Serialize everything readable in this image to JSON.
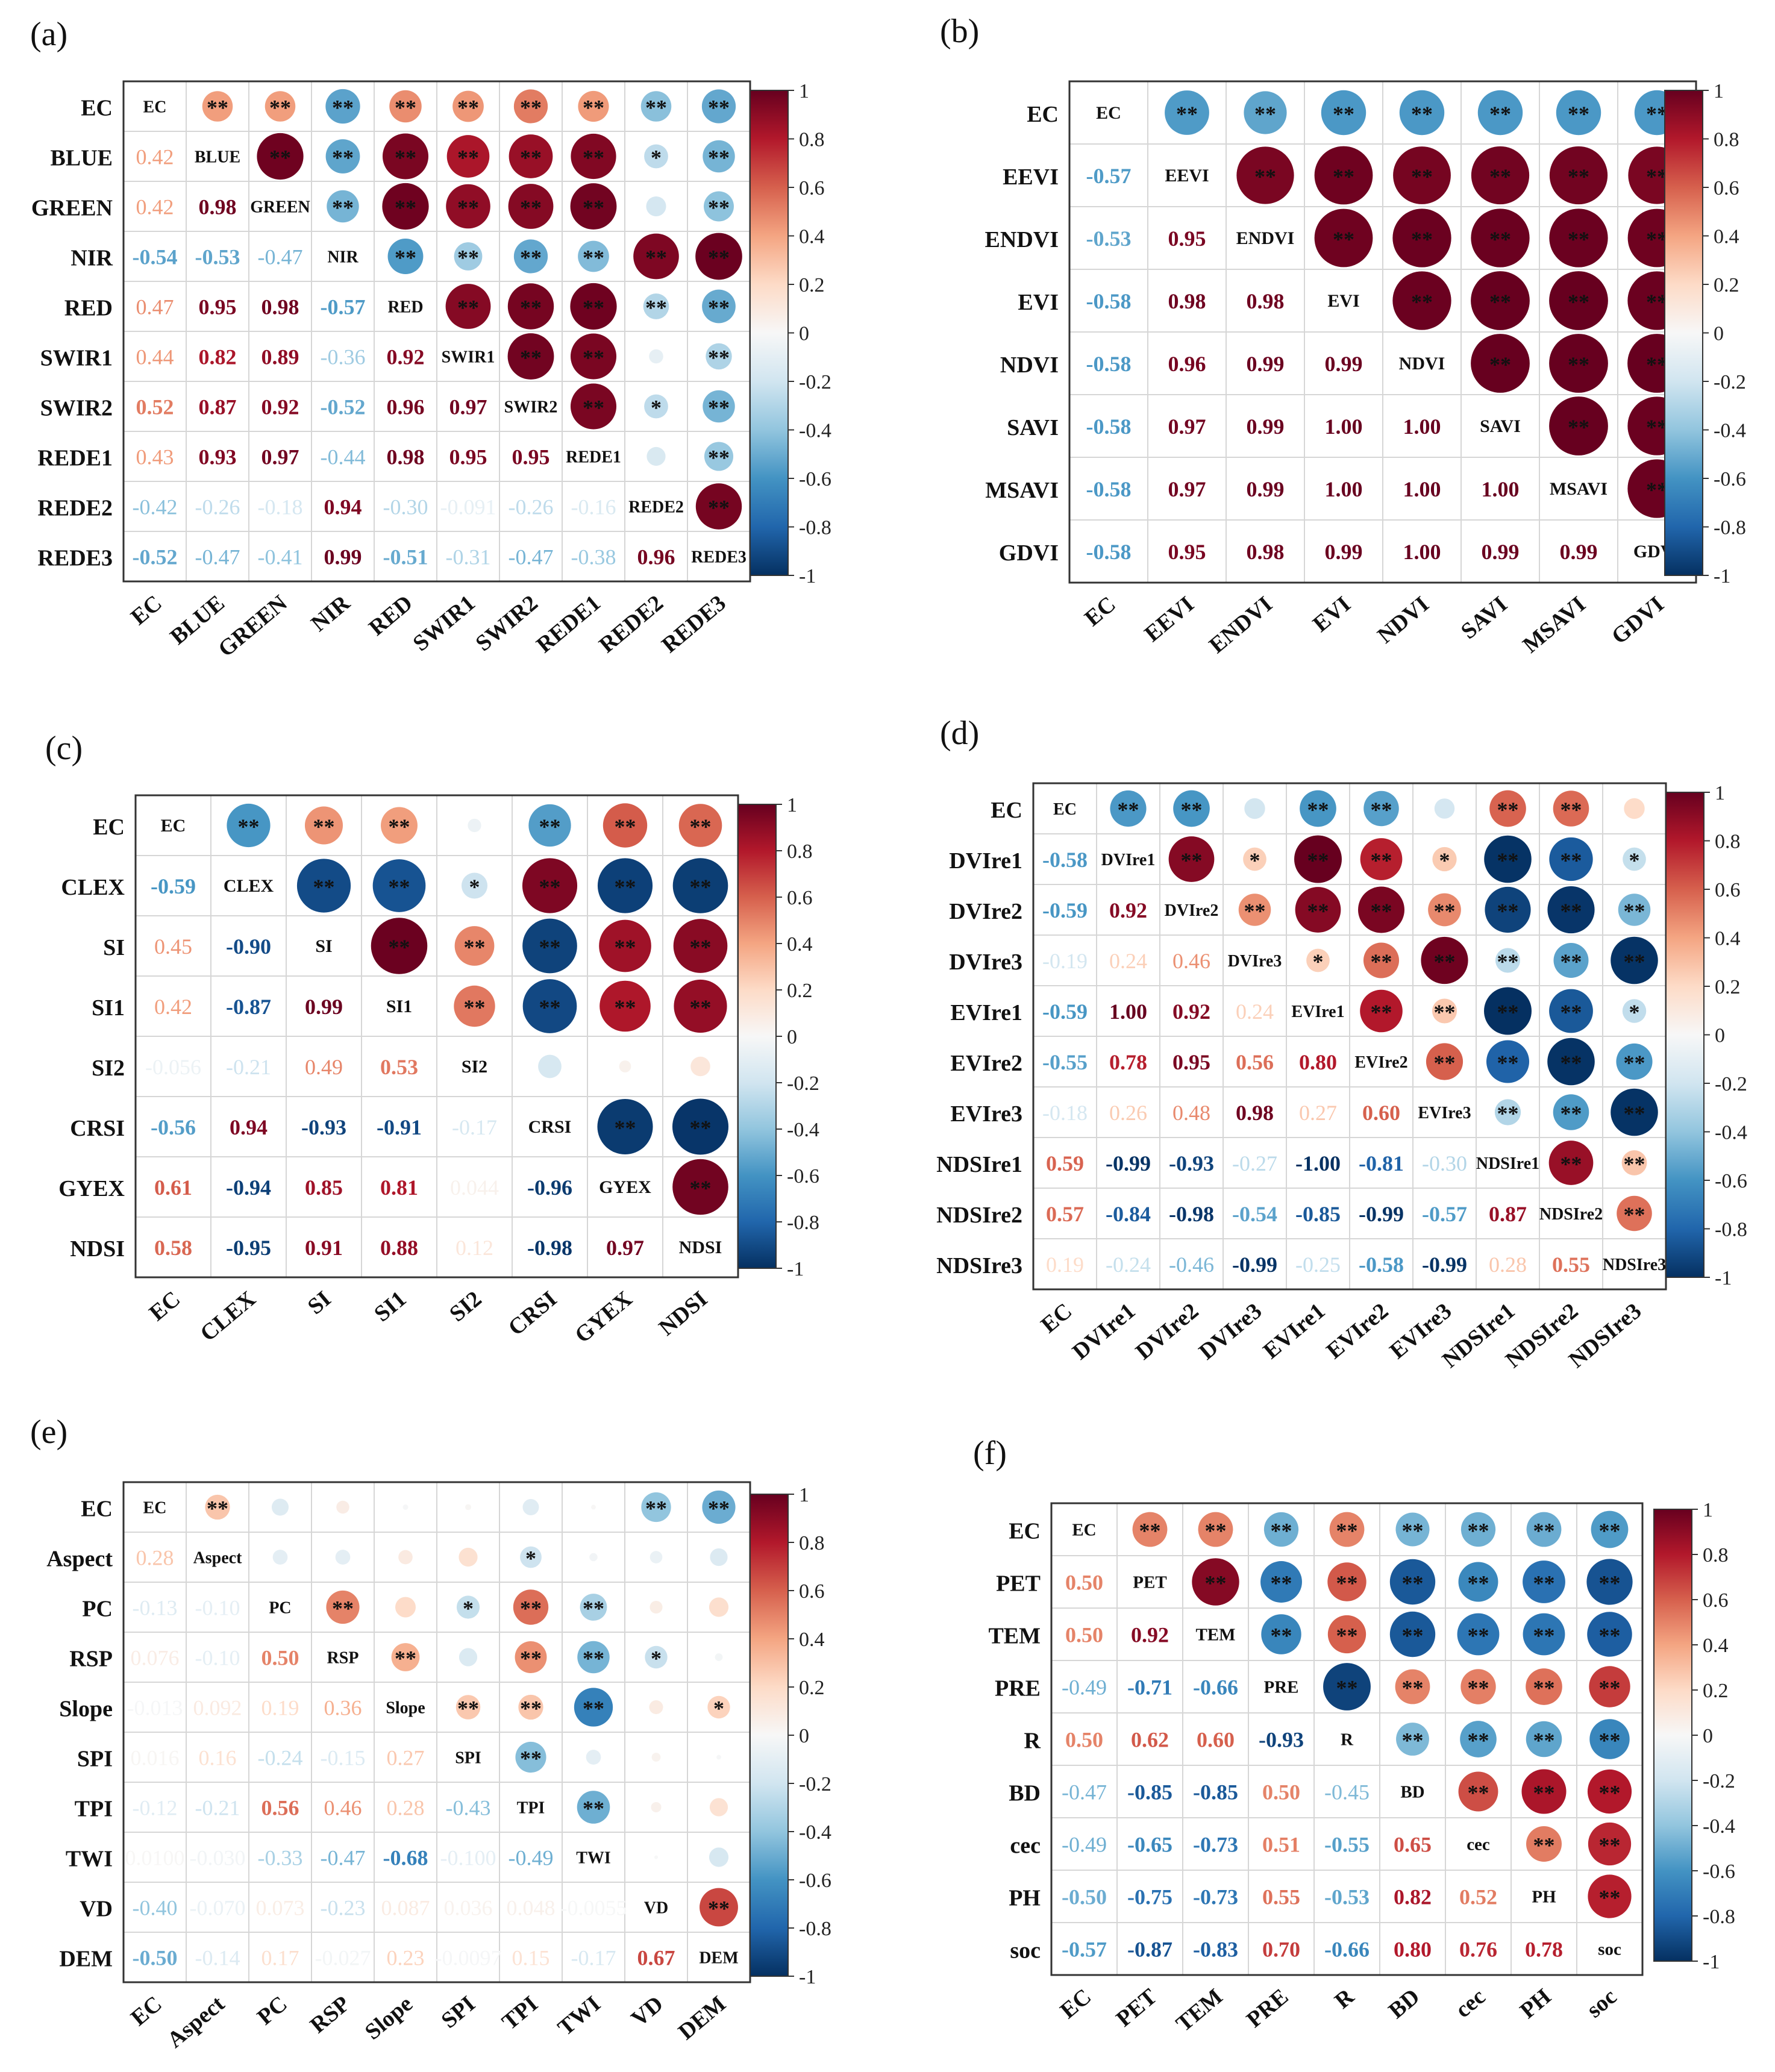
{
  "chart_data": [
    {
      "label": "(a)",
      "type": "heatmap",
      "variables": [
        "EC",
        "BLUE",
        "GREEN",
        "NIR",
        "RED",
        "SWIR1",
        "SWIR2",
        "REDE1",
        "REDE2",
        "REDE3"
      ],
      "lower": [
        [
          "0.42"
        ],
        [
          "0.42",
          "0.98"
        ],
        [
          "-0.54",
          "-0.53",
          "-0.47"
        ],
        [
          "0.47",
          "0.95",
          "0.98",
          "-0.57"
        ],
        [
          "0.44",
          "0.82",
          "0.89",
          "-0.36",
          "0.92"
        ],
        [
          "0.52",
          "0.87",
          "0.92",
          "-0.52",
          "0.96",
          "0.97"
        ],
        [
          "0.43",
          "0.93",
          "0.97",
          "-0.44",
          "0.98",
          "0.95",
          "0.95"
        ],
        [
          "-0.42",
          "-0.26",
          "-0.18",
          "0.94",
          "-0.30",
          "-0.091",
          "-0.26",
          "-0.16"
        ],
        [
          "-0.52",
          "-0.47",
          "-0.41",
          "0.99",
          "-0.51",
          "-0.31",
          "-0.47",
          "-0.38",
          "0.96"
        ]
      ],
      "upper_sig": [
        [
          "**",
          "**",
          "**",
          "**",
          "**",
          "**",
          "**",
          "**",
          "**"
        ],
        [
          "**",
          "**",
          "**",
          "**",
          "**",
          "**",
          "*",
          "**"
        ],
        [
          "**",
          "**",
          "**",
          "**",
          "**",
          "",
          "**"
        ],
        [
          "**",
          "**",
          "**",
          "**",
          "**",
          "**"
        ],
        [
          "**",
          "**",
          "**",
          "**",
          "**"
        ],
        [
          "**",
          "**",
          "",
          "**"
        ],
        [
          "**",
          "*",
          "**"
        ],
        [
          "",
          "**"
        ],
        [
          "**"
        ]
      ],
      "colorbar_ticks": [
        "1",
        "0.8",
        "0.6",
        "0.4",
        "0.2",
        "0",
        "-0.2",
        "-0.4",
        "-0.6",
        "-0.8",
        "-1"
      ]
    },
    {
      "label": "(b)",
      "type": "heatmap",
      "variables": [
        "EC",
        "EEVI",
        "ENDVI",
        "EVI",
        "NDVI",
        "SAVI",
        "MSAVI",
        "GDVI"
      ],
      "lower": [
        [
          "-0.57"
        ],
        [
          "-0.53",
          "0.95"
        ],
        [
          "-0.58",
          "0.98",
          "0.98"
        ],
        [
          "-0.58",
          "0.96",
          "0.99",
          "0.99"
        ],
        [
          "-0.58",
          "0.97",
          "0.99",
          "1.00",
          "1.00"
        ],
        [
          "-0.58",
          "0.97",
          "0.99",
          "1.00",
          "1.00",
          "1.00"
        ],
        [
          "-0.58",
          "0.95",
          "0.98",
          "0.99",
          "1.00",
          "0.99",
          "0.99"
        ]
      ],
      "upper_sig": [
        [
          "**",
          "**",
          "**",
          "**",
          "**",
          "**",
          "**"
        ],
        [
          "**",
          "**",
          "**",
          "**",
          "**",
          "**"
        ],
        [
          "**",
          "**",
          "**",
          "**",
          "**"
        ],
        [
          "**",
          "**",
          "**",
          "**"
        ],
        [
          "**",
          "**",
          "**"
        ],
        [
          "**",
          "**"
        ],
        [
          "**"
        ]
      ],
      "colorbar_ticks": [
        "1",
        "0.8",
        "0.6",
        "0.4",
        "0.2",
        "0",
        "-0.2",
        "-0.4",
        "-0.6",
        "-0.8",
        "-1"
      ]
    },
    {
      "label": "(c)",
      "type": "heatmap",
      "variables": [
        "EC",
        "CLEX",
        "SI",
        "SI1",
        "SI2",
        "CRSI",
        "GYEX",
        "NDSI"
      ],
      "lower": [
        [
          "-0.59"
        ],
        [
          "0.45",
          "-0.90"
        ],
        [
          "0.42",
          "-0.87",
          "0.99"
        ],
        [
          "-0.056",
          "-0.21",
          "0.49",
          "0.53"
        ],
        [
          "-0.56",
          "0.94",
          "-0.93",
          "-0.91",
          "-0.17"
        ],
        [
          "0.61",
          "-0.94",
          "0.85",
          "0.81",
          "0.044",
          "-0.96"
        ],
        [
          "0.58",
          "-0.95",
          "0.91",
          "0.88",
          "0.12",
          "-0.98",
          "0.97"
        ]
      ],
      "upper_sig": [
        [
          "**",
          "**",
          "**",
          "",
          "**",
          "**",
          "**"
        ],
        [
          "**",
          "**",
          "*",
          "**",
          "**",
          "**"
        ],
        [
          "**",
          "**",
          "**",
          "**",
          "**"
        ],
        [
          "**",
          "**",
          "**",
          "**"
        ],
        [
          "",
          "",
          ""
        ],
        [
          "**",
          "**"
        ],
        [
          "**"
        ]
      ],
      "colorbar_ticks": [
        "1",
        "0.8",
        "0.6",
        "0.4",
        "0.2",
        "0",
        "-0.2",
        "-0.4",
        "-0.6",
        "-0.8",
        "-1"
      ]
    },
    {
      "label": "(d)",
      "type": "heatmap",
      "variables": [
        "EC",
        "DVIre1",
        "DVIre2",
        "DVIre3",
        "EVIre1",
        "EVIre2",
        "EVIre3",
        "NDSIre1",
        "NDSIre2",
        "NDSIre3"
      ],
      "lower": [
        [
          "-0.58"
        ],
        [
          "-0.59",
          "0.92"
        ],
        [
          "-0.19",
          "0.24",
          "0.46"
        ],
        [
          "-0.59",
          "1.00",
          "0.92",
          "0.24"
        ],
        [
          "-0.55",
          "0.78",
          "0.95",
          "0.56",
          "0.80"
        ],
        [
          "-0.18",
          "0.26",
          "0.48",
          "0.98",
          "0.27",
          "0.60"
        ],
        [
          "0.59",
          "-0.99",
          "-0.93",
          "-0.27",
          "-1.00",
          "-0.81",
          "-0.30"
        ],
        [
          "0.57",
          "-0.84",
          "-0.98",
          "-0.54",
          "-0.85",
          "-0.99",
          "-0.57",
          "0.87"
        ],
        [
          "0.19",
          "-0.24",
          "-0.46",
          "-0.99",
          "-0.25",
          "-0.58",
          "-0.99",
          "0.28",
          "0.55"
        ]
      ],
      "upper_sig": [
        [
          "**",
          "**",
          "",
          "**",
          "**",
          "",
          "**",
          "**",
          ""
        ],
        [
          "**",
          "*",
          "**",
          "**",
          "*",
          "**",
          "**",
          "*"
        ],
        [
          "**",
          "**",
          "**",
          "**",
          "**",
          "**",
          "**"
        ],
        [
          "*",
          "**",
          "**",
          "**",
          "**",
          "**"
        ],
        [
          "**",
          "**",
          "**",
          "**",
          "*"
        ],
        [
          "**",
          "**",
          "**",
          "**"
        ],
        [
          "**",
          "**",
          "**"
        ],
        [
          "**",
          "**"
        ],
        [
          "**"
        ]
      ],
      "colorbar_ticks": [
        "1",
        "0.8",
        "0.6",
        "0.4",
        "0.2",
        "0",
        "-0.2",
        "-0.4",
        "-0.6",
        "-0.8",
        "-1"
      ]
    },
    {
      "label": "(e)",
      "type": "heatmap",
      "variables": [
        "EC",
        "Aspect",
        "PC",
        "RSP",
        "Slope",
        "SPI",
        "TPI",
        "TWI",
        "VD",
        "DEM"
      ],
      "lower": [
        [
          "0.28"
        ],
        [
          "-0.13",
          "-0.10"
        ],
        [
          "0.076",
          "-0.10",
          "0.50"
        ],
        [
          "-0.013",
          "0.092",
          "0.19",
          "0.36"
        ],
        [
          "0.016",
          "0.16",
          "-0.24",
          "-0.15",
          "0.27"
        ],
        [
          "-0.12",
          "-0.21",
          "0.56",
          "0.46",
          "0.28",
          "-0.43"
        ],
        [
          "0.0100",
          "-0.030",
          "-0.33",
          "-0.47",
          "-0.68",
          "-0.100",
          "-0.49"
        ],
        [
          "-0.40",
          "-0.070",
          "0.073",
          "-0.23",
          "0.087",
          "0.036",
          "0.048",
          "-0.0055"
        ],
        [
          "-0.50",
          "-0.14",
          "0.17",
          "-0.027",
          "0.23",
          "-0.0097",
          "0.15",
          "-0.17",
          "0.67"
        ]
      ],
      "upper_sig": [
        [
          "**",
          "",
          "",
          "",
          "",
          "",
          "",
          "**",
          "**"
        ],
        [
          "",
          "",
          "",
          "",
          "*",
          "",
          "",
          " ",
          ""
        ],
        [
          "**",
          "",
          "*",
          "**",
          "**",
          "",
          ""
        ],
        [
          "**",
          "",
          "**",
          "**",
          "*",
          ""
        ],
        [
          "**",
          "**",
          "**",
          "",
          "*"
        ],
        [
          "**",
          "",
          "",
          ""
        ],
        [
          "**",
          "",
          ""
        ],
        [
          "",
          ""
        ],
        [
          "**"
        ]
      ],
      "colorbar_ticks": [
        "1",
        "0.8",
        "0.6",
        "0.4",
        "0.2",
        "0",
        "-0.2",
        "-0.4",
        "-0.6",
        "-0.8",
        "-1"
      ]
    },
    {
      "label": "(f)",
      "type": "heatmap",
      "variables": [
        "EC",
        "PET",
        "TEM",
        "PRE",
        "R",
        "BD",
        "cec",
        "PH",
        "soc"
      ],
      "lower": [
        [
          "0.50"
        ],
        [
          "0.50",
          "0.92"
        ],
        [
          "-0.49",
          "-0.71",
          "-0.66"
        ],
        [
          "0.50",
          "0.62",
          "0.60",
          "-0.93"
        ],
        [
          "-0.47",
          "-0.85",
          "-0.85",
          "0.50",
          "-0.45"
        ],
        [
          "-0.49",
          "-0.65",
          "-0.73",
          "0.51",
          "-0.55",
          "0.65"
        ],
        [
          "-0.50",
          "-0.75",
          "-0.73",
          "0.55",
          "-0.53",
          "0.82",
          "0.52"
        ],
        [
          "-0.57",
          "-0.87",
          "-0.83",
          "0.70",
          "-0.66",
          "0.80",
          "0.76",
          "0.78"
        ]
      ],
      "upper_sig": [
        [
          "**",
          "**",
          "**",
          "**",
          "**",
          "**",
          "**",
          "**"
        ],
        [
          "**",
          "**",
          "**",
          "**",
          "**",
          "**",
          "**"
        ],
        [
          "**",
          "**",
          "**",
          "**",
          "**",
          "**"
        ],
        [
          "**",
          "**",
          "**",
          "**",
          "**"
        ],
        [
          "**",
          "**",
          "**",
          "**"
        ],
        [
          "**",
          "**",
          "**"
        ],
        [
          "**",
          "**"
        ],
        [
          "**"
        ]
      ],
      "colorbar_ticks": [
        "1",
        "0.8",
        "0.6",
        "0.4",
        "0.2",
        "0",
        "-0.2",
        "-0.4",
        "-0.6",
        "-0.8",
        "-1"
      ]
    }
  ]
}
